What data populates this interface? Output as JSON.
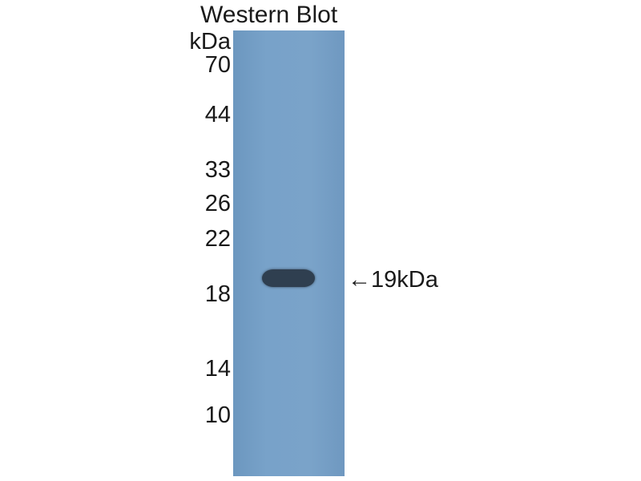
{
  "title": "Western Blot",
  "unit": "kDa",
  "markers": [
    "70",
    "44",
    "33",
    "26",
    "22",
    "18",
    "14",
    "10"
  ],
  "band_label": "←19kDa",
  "colors": {
    "membrane": "#78a2c9",
    "band": "#2f3f50"
  }
}
